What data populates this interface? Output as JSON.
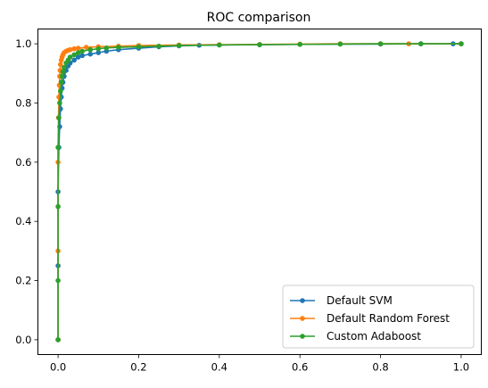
{
  "chart_data": {
    "type": "line",
    "title": "ROC comparison",
    "xlabel": "",
    "ylabel": "",
    "xlim": [
      -0.05,
      1.05
    ],
    "ylim": [
      -0.05,
      1.05
    ],
    "xticks": [
      "0.0",
      "0.2",
      "0.4",
      "0.6",
      "0.8",
      "1.0"
    ],
    "yticks": [
      "0.0",
      "0.2",
      "0.4",
      "0.6",
      "0.8",
      "1.0"
    ],
    "grid": false,
    "legend_position": "lower-right",
    "marker": "circle",
    "series": [
      {
        "name": "Default SVM",
        "color": "#1f77b4",
        "x": [
          0.0,
          0.0,
          0.0,
          0.002,
          0.004,
          0.006,
          0.008,
          0.01,
          0.012,
          0.015,
          0.02,
          0.025,
          0.03,
          0.04,
          0.05,
          0.06,
          0.08,
          0.1,
          0.12,
          0.15,
          0.2,
          0.25,
          0.3,
          0.35,
          0.4,
          0.5,
          0.6,
          0.7,
          0.8,
          0.9,
          0.98,
          1.0
        ],
        "y": [
          0.0,
          0.25,
          0.5,
          0.65,
          0.72,
          0.78,
          0.82,
          0.85,
          0.87,
          0.89,
          0.91,
          0.925,
          0.935,
          0.945,
          0.955,
          0.96,
          0.965,
          0.97,
          0.975,
          0.98,
          0.985,
          0.99,
          0.993,
          0.995,
          0.996,
          0.997,
          0.998,
          0.999,
          0.999,
          1.0,
          1.0,
          1.0
        ]
      },
      {
        "name": "Default Random Forest",
        "color": "#ff7f0e",
        "x": [
          0.0,
          0.0,
          0.0,
          0.001,
          0.002,
          0.003,
          0.004,
          0.005,
          0.006,
          0.008,
          0.01,
          0.012,
          0.015,
          0.02,
          0.025,
          0.03,
          0.04,
          0.05,
          0.07,
          0.1,
          0.15,
          0.2,
          0.3,
          0.4,
          0.5,
          0.6,
          0.7,
          0.8,
          0.87,
          1.0
        ],
        "y": [
          0.0,
          0.3,
          0.6,
          0.75,
          0.82,
          0.86,
          0.89,
          0.91,
          0.93,
          0.945,
          0.955,
          0.963,
          0.97,
          0.975,
          0.978,
          0.98,
          0.983,
          0.985,
          0.988,
          0.99,
          0.992,
          0.994,
          0.996,
          0.997,
          0.998,
          0.999,
          1.0,
          1.0,
          1.0,
          1.0
        ]
      },
      {
        "name": "Custom Adaboost",
        "color": "#2ca02c",
        "x": [
          0.0,
          0.0,
          0.0,
          0.0,
          0.002,
          0.004,
          0.006,
          0.008,
          0.01,
          0.012,
          0.015,
          0.02,
          0.025,
          0.03,
          0.04,
          0.05,
          0.06,
          0.08,
          0.1,
          0.12,
          0.15,
          0.2,
          0.25,
          0.3,
          0.4,
          0.5,
          0.6,
          0.7,
          0.8,
          0.9,
          1.0
        ],
        "y": [
          0.0,
          0.2,
          0.45,
          0.65,
          0.75,
          0.8,
          0.84,
          0.87,
          0.89,
          0.905,
          0.92,
          0.935,
          0.945,
          0.955,
          0.963,
          0.97,
          0.975,
          0.98,
          0.983,
          0.986,
          0.988,
          0.99,
          0.992,
          0.994,
          0.996,
          0.997,
          0.998,
          0.999,
          1.0,
          1.0,
          1.0
        ]
      }
    ]
  }
}
